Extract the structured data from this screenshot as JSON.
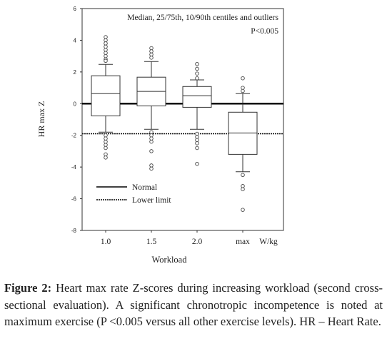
{
  "chart_data": {
    "type": "box",
    "x_label": "Workload",
    "x_unit": "W/kg",
    "y_label": "HR max Z",
    "annotations": [
      "Median, 25/75th, 10/90th centiles and outliers",
      "P<0.005"
    ],
    "categories": [
      "1.0",
      "1.5",
      "2.0",
      "max"
    ],
    "boxes": [
      {
        "whisker_low": -1.8,
        "q1": -0.77,
        "median": 0.63,
        "q3": 1.76,
        "whisker_high": 2.48,
        "outliers": [
          4.2,
          4.0,
          3.8,
          3.6,
          3.4,
          3.2,
          3.0,
          2.8,
          2.7,
          -2.0,
          -2.2,
          -2.4,
          -2.6,
          -2.8,
          -3.2,
          -3.4
        ]
      },
      {
        "whisker_low": -1.62,
        "q1": -0.14,
        "median": 0.77,
        "q3": 1.67,
        "whisker_high": 2.66,
        "outliers": [
          3.5,
          3.3,
          3.1,
          2.9,
          -1.8,
          -2.0,
          -2.2,
          -2.4,
          -3.0,
          -3.9,
          -4.1
        ]
      },
      {
        "whisker_low": -1.62,
        "q1": -0.23,
        "median": 0.5,
        "q3": 1.08,
        "whisker_high": 1.5,
        "outliers": [
          2.5,
          2.2,
          1.9,
          1.6,
          -1.9,
          -2.1,
          -2.3,
          -2.5,
          -2.8,
          -3.8
        ]
      },
      {
        "whisker_low": -4.3,
        "q1": -3.2,
        "median": -1.85,
        "q3": -0.54,
        "whisker_high": 0.63,
        "outliers": [
          1.6,
          1.0,
          0.8,
          -4.5,
          -5.2,
          -5.4,
          -6.7
        ]
      }
    ],
    "reference_lines": [
      {
        "name": "Normal",
        "value": 0,
        "style": "solid"
      },
      {
        "name": "Lower limit",
        "value": -1.9,
        "style": "dotted"
      }
    ],
    "ylim": [
      -8,
      6
    ],
    "yticks": [
      -8,
      -6,
      -4,
      -2,
      0,
      2,
      4,
      6
    ]
  },
  "caption": {
    "label": "Figure 2:",
    "text": "Heart max rate Z-scores during increasing workload (second cross-sectional evaluation). A significant chronotropic incompetence is noted at maximum exercise (P <0.005 versus all other exercise levels). HR – Heart Rate."
  }
}
